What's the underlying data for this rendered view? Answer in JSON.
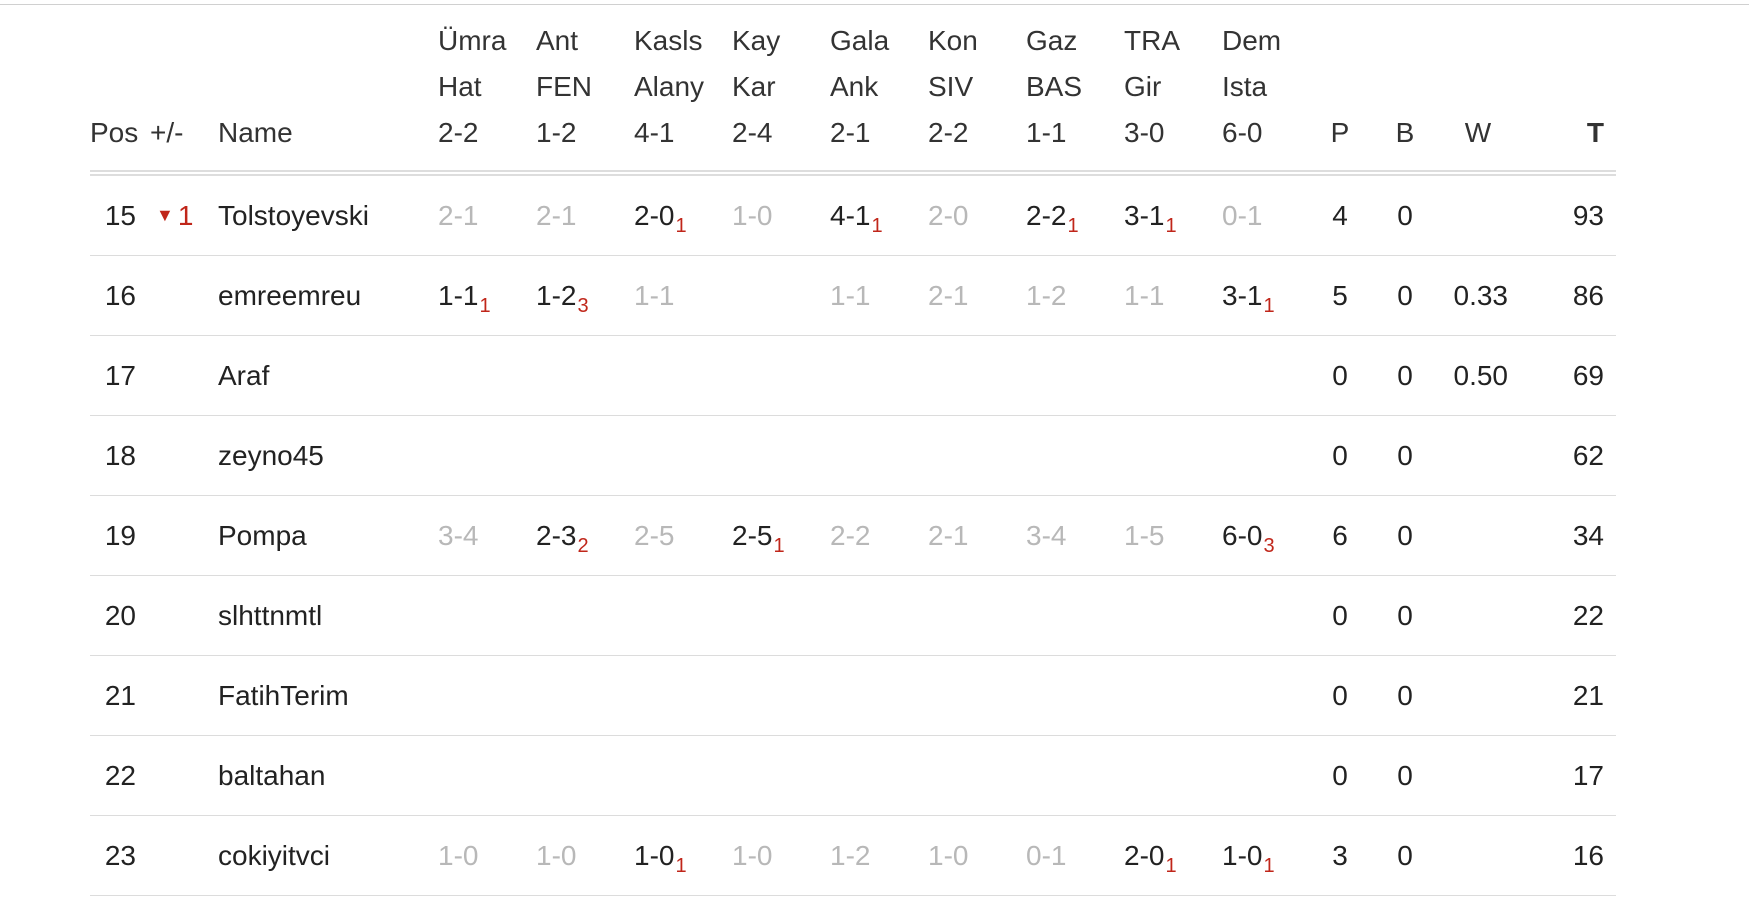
{
  "columns": {
    "pos": "Pos",
    "move": "+/-",
    "name": "Name",
    "matches": [
      {
        "home": "Ümra",
        "away": "Hat",
        "score": "2-2"
      },
      {
        "home": "Ant",
        "away": "FEN",
        "score": "1-2"
      },
      {
        "home": "Kasls",
        "away": "Alany",
        "score": "4-1"
      },
      {
        "home": "Kay",
        "away": "Kar",
        "score": "2-4"
      },
      {
        "home": "Gala",
        "away": "Ank",
        "score": "2-1"
      },
      {
        "home": "Kon",
        "away": "SIV",
        "score": "2-2"
      },
      {
        "home": "Gaz",
        "away": "BAS",
        "score": "1-1"
      },
      {
        "home": "TRA",
        "away": "Gir",
        "score": "3-0"
      },
      {
        "home": "Dem",
        "away": "Ista",
        "score": "6-0"
      }
    ],
    "p": "P",
    "b": "B",
    "w": "W",
    "t": "T"
  },
  "rows": [
    {
      "pos": "15",
      "move": {
        "dir": "down",
        "value": "1"
      },
      "name": "Tolstoyevski",
      "preds": [
        {
          "score": "2-1",
          "pts": ""
        },
        {
          "score": "2-1",
          "pts": ""
        },
        {
          "score": "2-0",
          "pts": "1"
        },
        {
          "score": "1-0",
          "pts": ""
        },
        {
          "score": "4-1",
          "pts": "1"
        },
        {
          "score": "2-0",
          "pts": ""
        },
        {
          "score": "2-2",
          "pts": "1"
        },
        {
          "score": "3-1",
          "pts": "1"
        },
        {
          "score": "0-1",
          "pts": ""
        }
      ],
      "p": "4",
      "b": "0",
      "w": "",
      "t": "93"
    },
    {
      "pos": "16",
      "move": null,
      "name": "emreemreu",
      "preds": [
        {
          "score": "1-1",
          "pts": "1"
        },
        {
          "score": "1-2",
          "pts": "3"
        },
        {
          "score": "1-1",
          "pts": ""
        },
        {
          "score": "",
          "pts": ""
        },
        {
          "score": "1-1",
          "pts": ""
        },
        {
          "score": "2-1",
          "pts": ""
        },
        {
          "score": "1-2",
          "pts": ""
        },
        {
          "score": "1-1",
          "pts": ""
        },
        {
          "score": "3-1",
          "pts": "1"
        }
      ],
      "p": "5",
      "b": "0",
      "w": "0.33",
      "t": "86"
    },
    {
      "pos": "17",
      "move": null,
      "name": "Araf",
      "preds": [],
      "p": "0",
      "b": "0",
      "w": "0.50",
      "t": "69"
    },
    {
      "pos": "18",
      "move": null,
      "name": "zeyno45",
      "preds": [],
      "p": "0",
      "b": "0",
      "w": "",
      "t": "62"
    },
    {
      "pos": "19",
      "move": null,
      "name": "Pompa",
      "preds": [
        {
          "score": "3-4",
          "pts": ""
        },
        {
          "score": "2-3",
          "pts": "2"
        },
        {
          "score": "2-5",
          "pts": ""
        },
        {
          "score": "2-5",
          "pts": "1"
        },
        {
          "score": "2-2",
          "pts": ""
        },
        {
          "score": "2-1",
          "pts": ""
        },
        {
          "score": "3-4",
          "pts": ""
        },
        {
          "score": "1-5",
          "pts": ""
        },
        {
          "score": "6-0",
          "pts": "3"
        }
      ],
      "p": "6",
      "b": "0",
      "w": "",
      "t": "34"
    },
    {
      "pos": "20",
      "move": null,
      "name": "slhttnmtl",
      "preds": [],
      "p": "0",
      "b": "0",
      "w": "",
      "t": "22"
    },
    {
      "pos": "21",
      "move": null,
      "name": "FatihTerim",
      "preds": [],
      "p": "0",
      "b": "0",
      "w": "",
      "t": "21"
    },
    {
      "pos": "22",
      "move": null,
      "name": "baltahan",
      "preds": [],
      "p": "0",
      "b": "0",
      "w": "",
      "t": "17"
    },
    {
      "pos": "23",
      "move": null,
      "name": "cokiyitvci",
      "preds": [
        {
          "score": "1-0",
          "pts": ""
        },
        {
          "score": "1-0",
          "pts": ""
        },
        {
          "score": "1-0",
          "pts": "1"
        },
        {
          "score": "1-0",
          "pts": ""
        },
        {
          "score": "1-2",
          "pts": ""
        },
        {
          "score": "1-0",
          "pts": ""
        },
        {
          "score": "0-1",
          "pts": ""
        },
        {
          "score": "2-0",
          "pts": "1"
        },
        {
          "score": "1-0",
          "pts": "1"
        }
      ],
      "p": "3",
      "b": "0",
      "w": "",
      "t": "16"
    }
  ],
  "colors": {
    "accent": "#c0261a",
    "muted": "#b8b8b8",
    "text": "#222222",
    "divider": "#dcdcdc"
  }
}
